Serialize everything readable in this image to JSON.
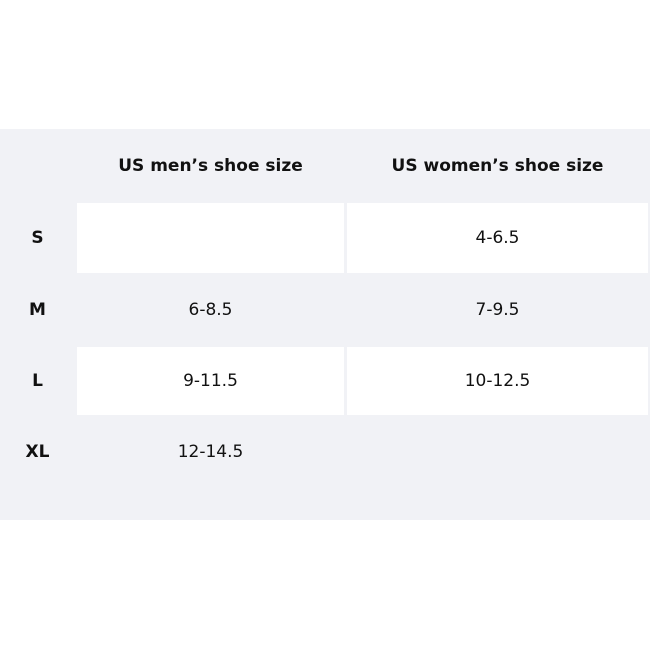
{
  "headers": [
    "",
    "US men’s shoe size",
    "US women’s shoe size"
  ],
  "rows": [
    {
      "size": "S",
      "men": "",
      "women": "4-6.5"
    },
    {
      "size": "M",
      "men": "6-8.5",
      "women": "7-9.5"
    },
    {
      "size": "L",
      "men": "9-11.5",
      "women": "10-12.5"
    },
    {
      "size": "XL",
      "men": "12-14.5",
      "women": ""
    }
  ]
}
